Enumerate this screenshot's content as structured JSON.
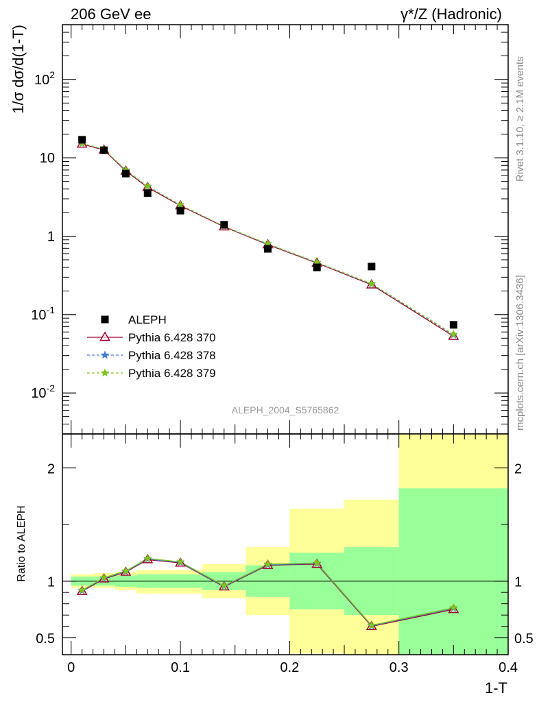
{
  "header": {
    "left": "206 GeV ee",
    "right": "γ*/Z (Hadronic)"
  },
  "side_text": {
    "rivet": "Rivet 3.1.10, ≥ 2.1M events",
    "source": "mcplots.cern.ch [arXiv:1306.3436]"
  },
  "watermark": "ALEPH_2004_S5765862",
  "chart_data": [
    {
      "type": "line",
      "panel": "main",
      "ylabel": "1/σ  dσ/d(1-T)",
      "yscale": "log",
      "ylim": [
        0.003,
        500
      ],
      "xlim": [
        -0.008,
        0.4
      ],
      "grid": false,
      "legend_position": "bottom-left",
      "y_ticks": [
        {
          "base": "10",
          "exp": "-2",
          "value": 0.01
        },
        {
          "base": "10",
          "exp": "-1",
          "value": 0.1
        },
        {
          "base": "1",
          "exp": "",
          "value": 1
        },
        {
          "base": "10",
          "exp": "",
          "value": 10
        },
        {
          "base": "10",
          "exp": "2",
          "value": 100
        }
      ],
      "x": [
        0.01,
        0.03,
        0.05,
        0.07,
        0.1,
        0.14,
        0.18,
        0.225,
        0.275,
        0.35
      ],
      "data": {
        "name": "ALEPH",
        "color": "#000000",
        "values": [
          17.0,
          12.5,
          6.3,
          3.55,
          2.12,
          1.4,
          0.69,
          0.4,
          0.41,
          0.074
        ]
      },
      "series": [
        {
          "name": "Pythia 6.428 370",
          "color": "#a0002b",
          "marker": "triangle",
          "dash": "solid",
          "values": [
            15.0,
            12.6,
            6.8,
            4.2,
            2.45,
            1.32,
            0.78,
            0.455,
            0.24,
            0.053
          ]
        },
        {
          "name": "Pythia 6.428 378",
          "color": "#3a7fd5",
          "marker": "star",
          "dash": "dashed",
          "values": [
            15.2,
            12.8,
            6.9,
            4.3,
            2.5,
            1.33,
            0.79,
            0.46,
            0.245,
            0.055
          ]
        },
        {
          "name": "Pythia 6.428 379",
          "color": "#7fc31c",
          "marker": "star",
          "dash": "dashed",
          "values": [
            15.3,
            12.9,
            7.0,
            4.35,
            2.52,
            1.34,
            0.8,
            0.465,
            0.248,
            0.056
          ]
        }
      ]
    },
    {
      "type": "line",
      "panel": "ratio",
      "ylabel": "Ratio to ALEPH",
      "xlabel": "1-T",
      "ylim": [
        0.35,
        2.3
      ],
      "xlim": [
        -0.008,
        0.4
      ],
      "y_ticks": [
        0.5,
        1,
        2
      ],
      "x_ticks": [
        "0",
        "0.1",
        "0.2",
        "0.3",
        "0.4"
      ],
      "x_tick_values": [
        0,
        0.1,
        0.2,
        0.3,
        0.4
      ],
      "bands": [
        {
          "x0": 0.0,
          "x1": 0.02,
          "green": [
            0.96,
            1.04
          ],
          "yellow": [
            0.94,
            1.06
          ]
        },
        {
          "x0": 0.02,
          "x1": 0.04,
          "green": [
            0.96,
            1.04
          ],
          "yellow": [
            0.94,
            1.07
          ]
        },
        {
          "x0": 0.04,
          "x1": 0.06,
          "green": [
            0.95,
            1.05
          ],
          "yellow": [
            0.92,
            1.08
          ]
        },
        {
          "x0": 0.06,
          "x1": 0.08,
          "green": [
            0.94,
            1.06
          ],
          "yellow": [
            0.89,
            1.1
          ]
        },
        {
          "x0": 0.08,
          "x1": 0.12,
          "green": [
            0.94,
            1.06
          ],
          "yellow": [
            0.89,
            1.1
          ]
        },
        {
          "x0": 0.12,
          "x1": 0.16,
          "green": [
            0.92,
            1.08
          ],
          "yellow": [
            0.85,
            1.15
          ]
        },
        {
          "x0": 0.16,
          "x1": 0.2,
          "green": [
            0.86,
            1.14
          ],
          "yellow": [
            0.7,
            1.3
          ]
        },
        {
          "x0": 0.2,
          "x1": 0.25,
          "green": [
            0.75,
            1.25
          ],
          "yellow": [
            0.36,
            1.64
          ]
        },
        {
          "x0": 0.25,
          "x1": 0.3,
          "green": [
            0.7,
            1.3
          ],
          "yellow": [
            0.35,
            1.72
          ]
        },
        {
          "x0": 0.3,
          "x1": 0.4,
          "green": [
            0.35,
            1.82
          ],
          "yellow": [
            0.35,
            2.3
          ]
        }
      ],
      "series": [
        {
          "name": "Pythia 6.428 370",
          "color": "#a0002b",
          "marker": "triangle",
          "values": [
            0.91,
            1.02,
            1.08,
            1.19,
            1.16,
            0.95,
            1.14,
            1.15,
            0.6,
            0.75
          ]
        },
        {
          "name": "Pythia 6.428 378",
          "color": "#3a7fd5",
          "marker": "star",
          "values": [
            0.915,
            1.025,
            1.085,
            1.195,
            1.165,
            0.955,
            1.145,
            1.155,
            0.605,
            0.76
          ]
        },
        {
          "name": "Pythia 6.428 379",
          "color": "#7fc31c",
          "marker": "star",
          "values": [
            0.92,
            1.03,
            1.09,
            1.2,
            1.17,
            0.96,
            1.15,
            1.16,
            0.61,
            0.765
          ]
        }
      ]
    }
  ]
}
